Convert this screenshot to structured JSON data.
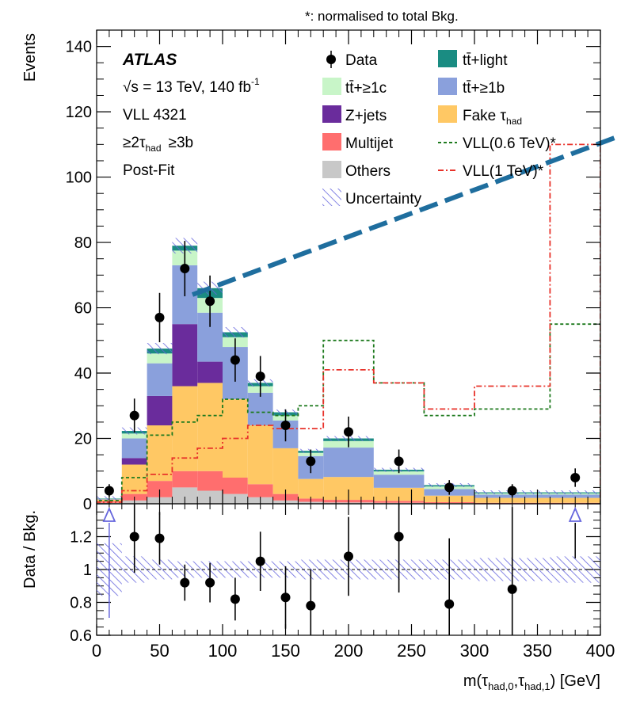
{
  "header": {
    "note": "*: normalised to total Bkg."
  },
  "annotations": {
    "experiment": "ATLAS",
    "energy": "√s = 13 TeV, 140 fb",
    "energy_sup": "-1",
    "analysis": "VLL 4321",
    "selection_a": "≥2τ",
    "selection_a_sub": "had",
    "selection_b": "≥3b",
    "fit": "Post-Fit"
  },
  "legend": {
    "data": "Data",
    "ttlight": "tt̄+light",
    "tt1c": "tt̄+≥1c",
    "tt1b": "tt̄+≥1b",
    "zjets": "Z+jets",
    "fake": "Fake τ",
    "fake_sub": "had",
    "multijet": "Multijet",
    "vll06": "VLL(0.6 TeV)*",
    "others": "Others",
    "vll1": "VLL(1 TeV)*",
    "unc": "Uncertainty"
  },
  "colors": {
    "others": "#c8c8c8",
    "multijet": "#ff6e6e",
    "fake": "#ffc864",
    "zjets": "#6a2c9c",
    "tt1b": "#8aa0dc",
    "tt1c": "#c8f5c8",
    "ttlight": "#1a8c82",
    "unc": "#6666dd",
    "vll06": "#1e7a1e",
    "vll1": "#e8322a",
    "arrow": "#1f6e9e"
  },
  "chart_data": {
    "type": "bar",
    "stacked": true,
    "bin_edges": [
      0,
      20,
      40,
      60,
      80,
      100,
      120,
      140,
      160,
      180,
      220,
      260,
      300,
      360,
      400
    ],
    "xlabel": "m(τ",
    "xlabel_sub0": "had,0",
    "xlabel_mid": ",τ",
    "xlabel_sub1": "had,1",
    "xlabel_end": ") [GeV]",
    "ylabel": "Events",
    "ratio_ylabel": "Data / Bkg.",
    "xlim": [
      0,
      400
    ],
    "ylim": [
      0,
      145
    ],
    "ratio_ylim": [
      0.6,
      1.4
    ],
    "x_ticks": [
      0,
      50,
      100,
      150,
      200,
      250,
      300,
      350,
      400
    ],
    "y_ticks": [
      0,
      20,
      40,
      60,
      80,
      100,
      120,
      140
    ],
    "ratio_ticks": [
      "0.6",
      "0.8",
      "1",
      "1.2"
    ],
    "ratio_tick_values": [
      0.6,
      0.8,
      1.0,
      1.2
    ],
    "series": [
      {
        "name": "Others",
        "key": "others",
        "values": [
          0.3,
          1.0,
          2.0,
          5.0,
          4.0,
          3.0,
          2.0,
          1.0,
          0.6,
          0.4,
          0.3,
          0.2,
          0.1,
          0.1
        ]
      },
      {
        "name": "Multijet",
        "key": "multijet",
        "values": [
          0.5,
          2.0,
          5.0,
          5.0,
          6.0,
          5.0,
          4.0,
          2.0,
          1.0,
          0.8,
          0.6,
          0.3,
          0.2,
          0.2
        ]
      },
      {
        "name": "Fake τhad",
        "key": "fake",
        "values": [
          0.5,
          9.0,
          17.0,
          26.0,
          27.0,
          24.0,
          18.0,
          14.0,
          6.0,
          7.0,
          4.0,
          2.0,
          1.5,
          1.5
        ]
      },
      {
        "name": "Z+jets",
        "key": "zjets",
        "values": [
          0.0,
          2.0,
          9.0,
          19.0,
          6.5,
          0.0,
          0.0,
          0.0,
          0.0,
          0.0,
          0.0,
          0.0,
          0.0,
          0.0
        ]
      },
      {
        "name": "tt̄+≥1b",
        "key": "tt1b",
        "values": [
          0.2,
          6.0,
          10.0,
          18.0,
          15.0,
          16.0,
          10.0,
          8.5,
          7.0,
          9.0,
          4.0,
          2.0,
          1.0,
          1.0
        ]
      },
      {
        "name": "tt̄+≥1c",
        "key": "tt1c",
        "values": [
          0.1,
          1.5,
          3.0,
          4.5,
          4.5,
          3.0,
          2.0,
          1.5,
          1.0,
          2.0,
          1.0,
          0.8,
          0.4,
          0.4
        ]
      },
      {
        "name": "tt̄+light",
        "key": "ttlight",
        "values": [
          0.1,
          0.8,
          1.5,
          1.5,
          3.0,
          1.5,
          1.0,
          1.0,
          0.6,
          0.8,
          0.5,
          0.4,
          0.3,
          0.3
        ]
      }
    ],
    "signals": [
      {
        "name": "VLL(0.6 TeV)*",
        "key": "vll06",
        "dash": "4,3",
        "values": [
          1.0,
          8.0,
          21.0,
          25.0,
          27.0,
          32.0,
          28.0,
          27.0,
          30.0,
          50.0,
          37.0,
          27.0,
          29.0,
          55.0
        ]
      },
      {
        "name": "VLL(1 TeV)*",
        "key": "vll1",
        "dash": "7,3,2,3",
        "values": [
          0.5,
          4.0,
          9.0,
          14.0,
          17.0,
          20.0,
          24.0,
          23.0,
          23.0,
          41.0,
          37.0,
          29.0,
          36.0,
          110.0
        ]
      }
    ],
    "data": {
      "x": [
        10,
        30,
        50,
        70,
        90,
        110,
        130,
        150,
        170,
        200,
        240,
        280,
        330,
        380
      ],
      "y": [
        4,
        27,
        57,
        72,
        62,
        44,
        39,
        24,
        13,
        22,
        13,
        5,
        4,
        8
      ]
    },
    "ratio": {
      "x": [
        30,
        50,
        70,
        90,
        110,
        130,
        150,
        170,
        200,
        240,
        280,
        330
      ],
      "y": [
        1.2,
        1.19,
        0.92,
        0.92,
        0.82,
        1.05,
        0.83,
        0.78,
        1.08,
        1.2,
        0.79,
        0.88
      ],
      "err": [
        0.22,
        0.16,
        0.11,
        0.12,
        0.13,
        0.18,
        0.19,
        0.22,
        0.24,
        0.34,
        0.4,
        0.5
      ],
      "off_scale_up_x": [
        10,
        380
      ],
      "band_halfwidth": [
        0.16,
        0.08,
        0.06,
        0.05,
        0.05,
        0.05,
        0.05,
        0.05,
        0.06,
        0.06,
        0.06,
        0.06,
        0.07,
        0.08
      ]
    }
  }
}
